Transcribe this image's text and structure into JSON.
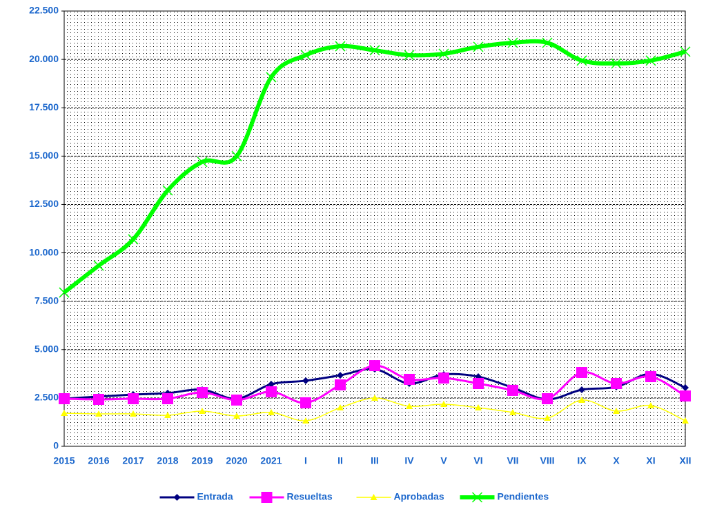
{
  "chart_data": {
    "type": "line",
    "categories": [
      "2015",
      "2016",
      "2017",
      "2018",
      "2019",
      "2020",
      "2021",
      "I",
      "II",
      "III",
      "IV",
      "V",
      "VI",
      "VII",
      "VIII",
      "IX",
      "X",
      "XI",
      "XII"
    ],
    "series": [
      {
        "name": "Entrada",
        "color": "#000080",
        "marker": "diamond",
        "values": [
          2460,
          2570,
          2675,
          2750,
          2925,
          2460,
          3210,
          3390,
          3670,
          3990,
          3245,
          3710,
          3600,
          3030,
          2425,
          2925,
          3070,
          3745,
          3030
        ]
      },
      {
        "name": "Resueltas",
        "color": "#ff00ff",
        "marker": "square",
        "values": [
          2460,
          2425,
          2460,
          2460,
          2780,
          2390,
          2820,
          2250,
          3175,
          4170,
          3460,
          3530,
          3245,
          2890,
          2460,
          3815,
          3245,
          3600,
          2600
        ]
      },
      {
        "name": "Aprobadas",
        "color": "#ffff00",
        "marker": "triangle",
        "values": [
          1710,
          1675,
          1675,
          1605,
          1820,
          1570,
          1750,
          1320,
          1995,
          2495,
          2070,
          2175,
          1995,
          1750,
          1460,
          2390,
          1820,
          2105,
          1320
        ]
      },
      {
        "name": "Pendientes",
        "color": "#00ff00",
        "marker": "x",
        "values": [
          7950,
          9340,
          10700,
          13230,
          14700,
          15000,
          19080,
          20220,
          20680,
          20470,
          20220,
          20290,
          20650,
          20860,
          20860,
          19940,
          19790,
          19940,
          20400
        ]
      }
    ],
    "ylim": [
      0,
      22500
    ],
    "yticks": [
      0,
      {
        "value": 2500,
        "label": "2.500"
      },
      {
        "value": 5000,
        "label": "5.000"
      },
      {
        "value": 7500,
        "label": "7.500"
      },
      {
        "value": 10000,
        "label": "10.000"
      },
      {
        "value": 12500,
        "label": "12.500"
      },
      {
        "value": 15000,
        "label": "15.000"
      },
      {
        "value": 17500,
        "label": "17.500"
      },
      {
        "value": 20000,
        "label": "20.000"
      },
      {
        "value": 22500,
        "label": "22.500"
      }
    ],
    "grid": true,
    "legend": "bottom"
  }
}
